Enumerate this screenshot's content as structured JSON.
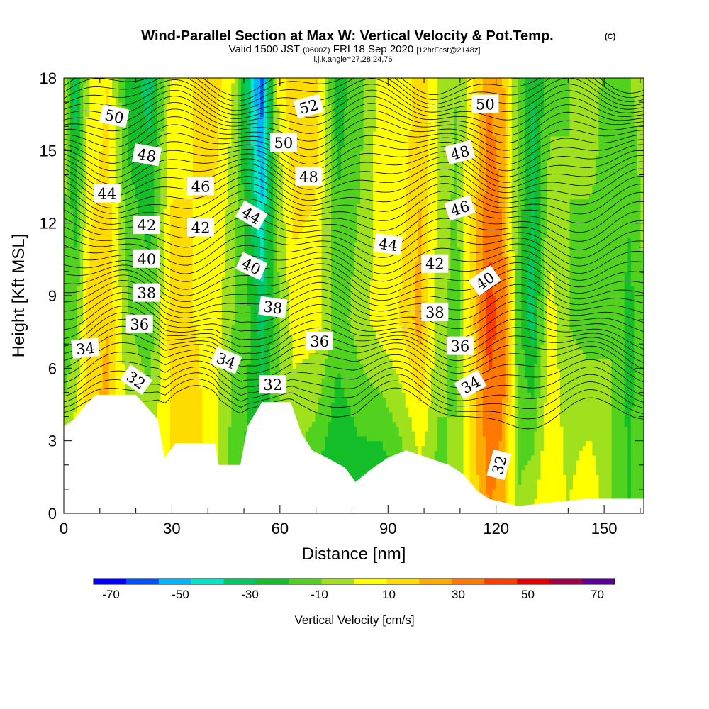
{
  "chart_data": {
    "type": "heatmap",
    "title": "Wind-Parallel Section at Max W: Vertical Velocity & Pot.Temp.",
    "title_mark": "(C)",
    "subtitle": {
      "prefix": "Valid 1500 JST",
      "utc": "(0600Z)",
      "date": "FRI 18 Sep 2020",
      "forecast": "[12hrFcst@2148z]"
    },
    "grid_info": "i,j,k,angle=27,28,24,76",
    "xlabel": "Distance [nm]",
    "ylabel": "Height [Kft MSL]",
    "xlim": [
      0,
      161
    ],
    "ylim": [
      0,
      18
    ],
    "x_ticks": [
      0,
      30,
      60,
      90,
      120,
      150
    ],
    "y_ticks": [
      0,
      3,
      6,
      9,
      12,
      15,
      18
    ],
    "grid": false,
    "colorbar": {
      "label": "Vertical Velocity [cm/s]",
      "levels": [
        -75,
        -65,
        -55,
        -45,
        -35,
        -25,
        -15,
        -5,
        5,
        15,
        25,
        35,
        45,
        55,
        65,
        75
      ],
      "colors": [
        "#0000ff",
        "#0050ff",
        "#00b4ff",
        "#00e6c8",
        "#00c864",
        "#14be28",
        "#50d21e",
        "#a0e11e",
        "#ffff00",
        "#ffdc00",
        "#ffaa00",
        "#ff7800",
        "#ff3c00",
        "#e60000",
        "#a00046",
        "#5a0096"
      ],
      "tick_labels": [
        "-70",
        "-50",
        "-30",
        "-10",
        "10",
        "30",
        "50",
        "70"
      ],
      "tick_values": [
        -70,
        -50,
        -30,
        -10,
        10,
        30,
        50,
        70
      ]
    },
    "vertical_velocity_columns": [
      {
        "x": 0,
        "w_low": 0,
        "w_mid": -10,
        "w_high": 5
      },
      {
        "x": 3,
        "w_low": 20,
        "w_mid": -10,
        "w_high": -30
      },
      {
        "x": 7,
        "w_low": 25,
        "w_mid": 20,
        "w_high": 5
      },
      {
        "x": 12,
        "w_low": 30,
        "w_mid": 25,
        "w_high": 15
      },
      {
        "x": 18,
        "w_low": 10,
        "w_mid": -5,
        "w_high": -20
      },
      {
        "x": 24,
        "w_low": 5,
        "w_mid": -10,
        "w_high": -30
      },
      {
        "x": 30,
        "w_low": 15,
        "w_mid": 20,
        "w_high": 10
      },
      {
        "x": 36,
        "w_low": 25,
        "w_mid": 15,
        "w_high": 15
      },
      {
        "x": 42,
        "w_low": 5,
        "w_mid": 10,
        "w_high": 20
      },
      {
        "x": 47,
        "w_low": -10,
        "w_mid": -5,
        "w_high": 5
      },
      {
        "x": 52,
        "w_low": -20,
        "w_mid": -15,
        "w_high": -40
      },
      {
        "x": 55,
        "w_low": -15,
        "w_mid": -30,
        "w_high": -60
      },
      {
        "x": 59,
        "w_low": 0,
        "w_mid": -10,
        "w_high": 5
      },
      {
        "x": 64,
        "w_low": -10,
        "w_mid": 10,
        "w_high": 25
      },
      {
        "x": 70,
        "w_low": -20,
        "w_mid": 10,
        "w_high": 20
      },
      {
        "x": 76,
        "w_low": -30,
        "w_mid": -10,
        "w_high": -20
      },
      {
        "x": 82,
        "w_low": -25,
        "w_mid": 0,
        "w_high": -10
      },
      {
        "x": 88,
        "w_low": -30,
        "w_mid": 10,
        "w_high": 10
      },
      {
        "x": 93,
        "w_low": -20,
        "w_mid": 15,
        "w_high": 5
      },
      {
        "x": 99,
        "w_low": -5,
        "w_mid": 30,
        "w_high": 20
      },
      {
        "x": 104,
        "w_low": -10,
        "w_mid": 0,
        "w_high": 5
      },
      {
        "x": 109,
        "w_low": 0,
        "w_mid": -10,
        "w_high": -5
      },
      {
        "x": 114,
        "w_low": 20,
        "w_mid": 25,
        "w_high": 15
      },
      {
        "x": 118,
        "w_low": 35,
        "w_mid": 50,
        "w_high": 35
      },
      {
        "x": 122,
        "w_low": 30,
        "w_mid": 40,
        "w_high": 25
      },
      {
        "x": 126,
        "w_low": -5,
        "w_mid": -10,
        "w_high": -5
      },
      {
        "x": 130,
        "w_low": 5,
        "w_mid": -30,
        "w_high": -25
      },
      {
        "x": 135,
        "w_low": 15,
        "w_mid": 10,
        "w_high": -10
      },
      {
        "x": 140,
        "w_low": 5,
        "w_mid": -5,
        "w_high": -5
      },
      {
        "x": 146,
        "w_low": 15,
        "w_mid": -10,
        "w_high": 0
      },
      {
        "x": 152,
        "w_low": -5,
        "w_mid": -5,
        "w_high": -10
      },
      {
        "x": 157,
        "w_low": -15,
        "w_mid": -20,
        "w_high": -5
      },
      {
        "x": 161,
        "w_low": -5,
        "w_mid": -5,
        "w_high": 0
      }
    ],
    "terrain_height_kft": [
      {
        "x": 0,
        "h": 3.6
      },
      {
        "x": 3,
        "h": 3.9
      },
      {
        "x": 6,
        "h": 4.5
      },
      {
        "x": 9,
        "h": 4.9
      },
      {
        "x": 20,
        "h": 4.9
      },
      {
        "x": 23,
        "h": 4.4
      },
      {
        "x": 26,
        "h": 3.9
      },
      {
        "x": 28,
        "h": 2.3
      },
      {
        "x": 31,
        "h": 2.9
      },
      {
        "x": 42,
        "h": 2.9
      },
      {
        "x": 43,
        "h": 2.0
      },
      {
        "x": 49,
        "h": 2.0
      },
      {
        "x": 51,
        "h": 3.6
      },
      {
        "x": 55,
        "h": 4.6
      },
      {
        "x": 63,
        "h": 4.6
      },
      {
        "x": 66,
        "h": 3.3
      },
      {
        "x": 69,
        "h": 2.6
      },
      {
        "x": 73,
        "h": 2.3
      },
      {
        "x": 78,
        "h": 1.9
      },
      {
        "x": 81,
        "h": 1.3
      },
      {
        "x": 86,
        "h": 1.9
      },
      {
        "x": 90,
        "h": 2.3
      },
      {
        "x": 95,
        "h": 2.6
      },
      {
        "x": 101,
        "h": 2.3
      },
      {
        "x": 107,
        "h": 2.0
      },
      {
        "x": 111,
        "h": 1.6
      },
      {
        "x": 115,
        "h": 0.9
      },
      {
        "x": 118,
        "h": 0.6
      },
      {
        "x": 126,
        "h": 0.3
      },
      {
        "x": 145,
        "h": 0.6
      },
      {
        "x": 161,
        "h": 0.6
      }
    ],
    "theta_contours": [
      {
        "value": 32,
        "base_height_kft": 4.9
      },
      {
        "value": 34,
        "base_height_kft": 6.3
      },
      {
        "value": 36,
        "base_height_kft": 7.4
      },
      {
        "value": 38,
        "base_height_kft": 8.7
      },
      {
        "value": 40,
        "base_height_kft": 10.0
      },
      {
        "value": 42,
        "base_height_kft": 11.3
      },
      {
        "value": 44,
        "base_height_kft": 12.6
      },
      {
        "value": 46,
        "base_height_kft": 13.8
      },
      {
        "value": 48,
        "base_height_kft": 14.9
      },
      {
        "value": 50,
        "base_height_kft": 16.0
      },
      {
        "value": 52,
        "base_height_kft": 17.0
      }
    ],
    "contour_labels": [
      {
        "text": "50",
        "x": 14,
        "y": 16.4,
        "angle": 12
      },
      {
        "text": "48",
        "x": 23,
        "y": 14.8,
        "angle": 10
      },
      {
        "text": "44",
        "x": 12,
        "y": 13.2,
        "angle": 0
      },
      {
        "text": "46",
        "x": 38,
        "y": 13.5,
        "angle": 0
      },
      {
        "text": "42",
        "x": 23,
        "y": 11.9,
        "angle": 0
      },
      {
        "text": "42",
        "x": 38,
        "y": 11.8,
        "angle": 0
      },
      {
        "text": "40",
        "x": 23,
        "y": 10.5,
        "angle": 0
      },
      {
        "text": "38",
        "x": 23,
        "y": 9.1,
        "angle": 0
      },
      {
        "text": "36",
        "x": 21,
        "y": 7.8,
        "angle": 0
      },
      {
        "text": "34",
        "x": 6,
        "y": 6.8,
        "angle": -6
      },
      {
        "text": "32",
        "x": 20,
        "y": 5.5,
        "angle": 35
      },
      {
        "text": "34",
        "x": 45,
        "y": 6.3,
        "angle": 22
      },
      {
        "text": "44",
        "x": 52,
        "y": 12.3,
        "angle": 30
      },
      {
        "text": "40",
        "x": 52,
        "y": 10.2,
        "angle": 25
      },
      {
        "text": "38",
        "x": 58,
        "y": 8.5,
        "angle": 8
      },
      {
        "text": "32",
        "x": 58,
        "y": 5.3,
        "angle": 0
      },
      {
        "text": "50",
        "x": 61,
        "y": 15.3,
        "angle": 0
      },
      {
        "text": "48",
        "x": 68,
        "y": 13.9,
        "angle": 0
      },
      {
        "text": "52",
        "x": 68,
        "y": 16.8,
        "angle": -15
      },
      {
        "text": "36",
        "x": 71,
        "y": 7.1,
        "angle": 0
      },
      {
        "text": "44",
        "x": 90,
        "y": 11.1,
        "angle": 8
      },
      {
        "text": "42",
        "x": 103,
        "y": 10.3,
        "angle": 0
      },
      {
        "text": "38",
        "x": 103,
        "y": 8.3,
        "angle": 0
      },
      {
        "text": "36",
        "x": 110,
        "y": 6.9,
        "angle": 0
      },
      {
        "text": "34",
        "x": 113,
        "y": 5.3,
        "angle": -30
      },
      {
        "text": "40",
        "x": 117,
        "y": 9.6,
        "angle": -35
      },
      {
        "text": "46",
        "x": 110,
        "y": 12.6,
        "angle": -18
      },
      {
        "text": "48",
        "x": 110,
        "y": 14.9,
        "angle": -15
      },
      {
        "text": "50",
        "x": 117,
        "y": 16.9,
        "angle": 0
      },
      {
        "text": "32",
        "x": 121,
        "y": 2.0,
        "angle": -75
      }
    ]
  }
}
